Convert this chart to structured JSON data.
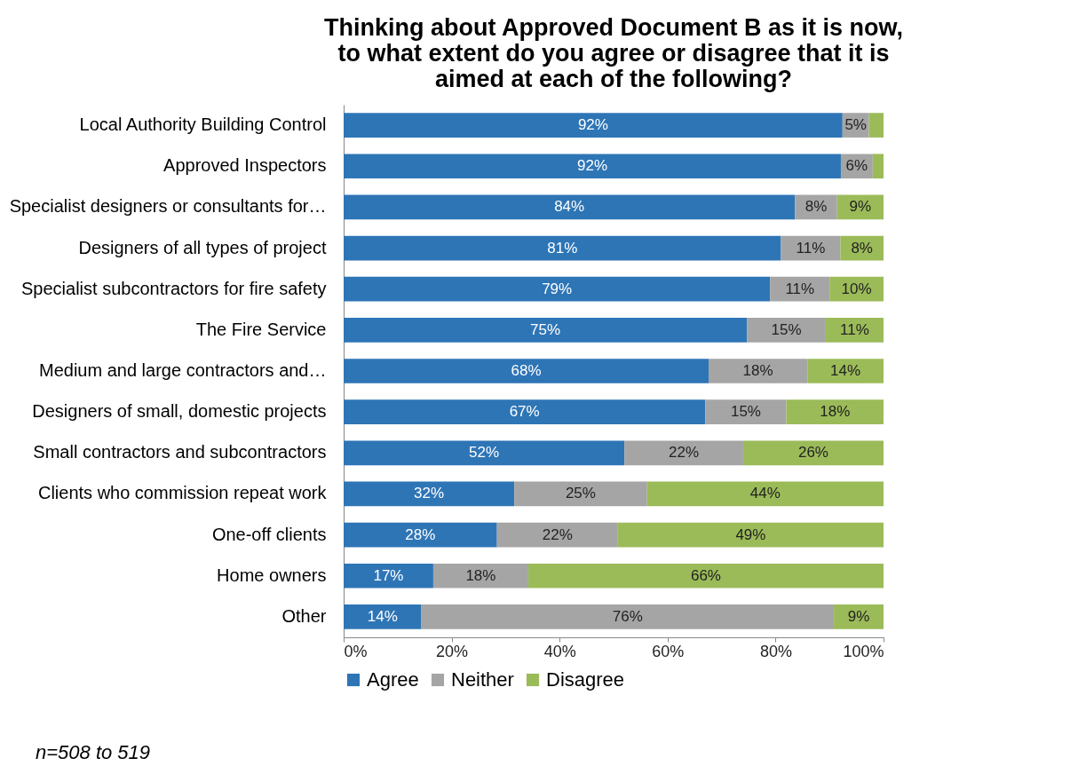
{
  "chart_data": {
    "type": "bar",
    "orientation": "horizontal",
    "stacked": true,
    "title": "Thinking about Approved Document B as it is now,\nto what extent do you agree or disagree that it is\naimed at each of the following?",
    "categories": [
      "Local Authority Building Control",
      "Approved Inspectors",
      "Specialist designers or consultants for…",
      "Designers of all types of project",
      "Specialist subcontractors for fire safety",
      "The Fire Service",
      "Medium and large contractors and…",
      "Designers of small, domestic projects",
      "Small contractors and subcontractors",
      "Clients who commission repeat work",
      "One-off clients",
      "Home owners",
      "Other"
    ],
    "series": [
      {
        "name": "Agree",
        "color": "#2e75b6",
        "values": [
          92.4,
          92.1,
          83.6,
          81,
          79,
          74.7,
          67.6,
          67,
          52,
          31.6,
          28.4,
          16.6,
          14.4
        ],
        "value_labels": [
          "92%",
          "92%",
          "84%",
          "81%",
          "79%",
          "75%",
          "68%",
          "67%",
          "52%",
          "32%",
          "28%",
          "17%",
          "14%"
        ]
      },
      {
        "name": "Neither",
        "color": "#a5a5a5",
        "values": [
          4.9,
          5.9,
          7.8,
          11,
          11,
          14.6,
          18.3,
          15,
          22,
          24.6,
          22.4,
          17.6,
          76.4
        ],
        "value_labels": [
          "5%",
          "6%",
          "8%",
          "11%",
          "11%",
          "15%",
          "18%",
          "15%",
          "22%",
          "25%",
          "22%",
          "18%",
          "76%"
        ]
      },
      {
        "name": "Disagree",
        "color": "#9bbb59",
        "values": [
          2.7,
          2,
          8.6,
          8,
          10,
          10.7,
          14.1,
          18,
          26,
          43.8,
          49.2,
          65.8,
          9.2
        ],
        "value_labels": [
          null,
          null,
          "9%",
          "8%",
          "10%",
          "11%",
          "14%",
          "18%",
          "26%",
          "44%",
          "49%",
          "66%",
          "9%"
        ]
      }
    ],
    "xlim": [
      0,
      100
    ],
    "xticks": [
      {
        "value": 0,
        "label": "0%"
      },
      {
        "value": 20,
        "label": "20%"
      },
      {
        "value": 40,
        "label": "40%"
      },
      {
        "value": 60,
        "label": "60%"
      },
      {
        "value": 80,
        "label": "80%"
      },
      {
        "value": 100,
        "label": "100%"
      }
    ],
    "grid": false,
    "legend": "bottom",
    "annotations": [
      "n=508 to 519"
    ]
  }
}
